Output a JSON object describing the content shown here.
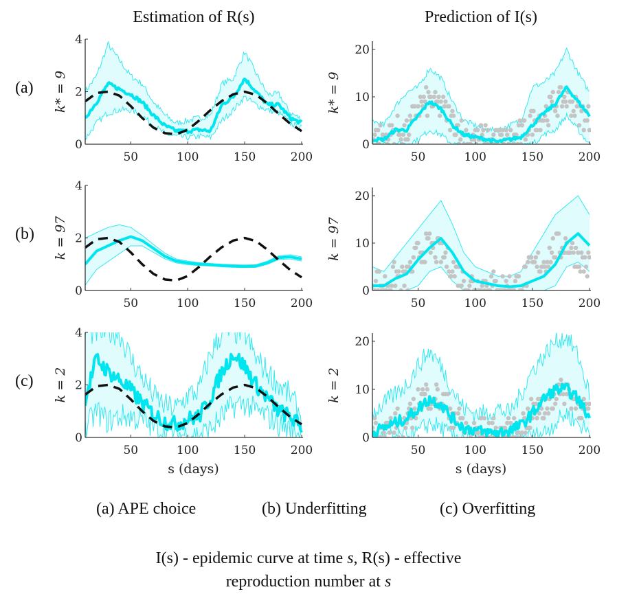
{
  "figure": {
    "col_titles": [
      "Estimation of R(s)",
      "Prediction of I(s)"
    ],
    "row_labels": [
      "(a)",
      "(b)",
      "(c)"
    ],
    "subcaptions": [
      "(a) APE choice",
      "(b) Underfitting",
      "(c) Overfitting"
    ],
    "caption_line1_a": "I(s) - epidemic curve at time ",
    "caption_line1_s": "s",
    "caption_line1_b": ", R(s) - effective",
    "caption_line2_a": "reproduction number at ",
    "caption_line2_s": "s",
    "colors": {
      "estimate": "#00e5ee",
      "band_fill": "#e0fcfd",
      "band_edge": "#33e8f0",
      "truth": "#111111",
      "observed": "#c4c4c4",
      "axis": "#333333"
    }
  },
  "chart_data": [
    {
      "id": "R-a",
      "type": "line",
      "panel": "Estimation of R(s)",
      "row": "(a)",
      "ylabel": "k* = 9",
      "xlabel": "",
      "xlim": [
        10,
        200
      ],
      "ylim": [
        0,
        4
      ],
      "xticks": [
        50,
        100,
        150,
        200
      ],
      "yticks": [
        0,
        2,
        4
      ],
      "x": [
        10,
        20,
        30,
        40,
        50,
        60,
        70,
        80,
        90,
        100,
        110,
        120,
        130,
        140,
        150,
        160,
        170,
        180,
        190,
        200
      ],
      "series": [
        {
          "name": "estimate",
          "values": [
            1.0,
            1.6,
            2.3,
            2.1,
            1.9,
            1.6,
            1.1,
            0.7,
            0.5,
            0.5,
            0.55,
            0.5,
            1.5,
            1.8,
            2.5,
            2.0,
            1.5,
            1.5,
            1.0,
            0.8
          ]
        },
        {
          "name": "upper",
          "values": [
            2.0,
            2.6,
            3.8,
            3.2,
            2.6,
            2.3,
            1.6,
            1.1,
            0.8,
            0.9,
            1.0,
            1.1,
            2.3,
            2.5,
            3.5,
            2.7,
            1.9,
            1.9,
            1.2,
            0.95
          ]
        },
        {
          "name": "lower",
          "values": [
            0.2,
            0.8,
            1.2,
            1.3,
            1.3,
            1.1,
            0.7,
            0.4,
            0.3,
            0.25,
            0.3,
            0.25,
            0.9,
            1.3,
            1.8,
            1.5,
            1.3,
            1.2,
            0.8,
            0.6
          ]
        },
        {
          "name": "truth",
          "values": [
            1.63,
            1.95,
            2.0,
            1.85,
            1.45,
            1.0,
            0.63,
            0.42,
            0.38,
            0.55,
            0.9,
            1.3,
            1.65,
            1.9,
            2.0,
            1.88,
            1.55,
            1.15,
            0.78,
            0.5
          ]
        }
      ]
    },
    {
      "id": "I-a",
      "type": "line",
      "panel": "Prediction of I(s)",
      "row": "(a)",
      "ylabel": "k* = 9",
      "xlabel": "",
      "xlim": [
        10,
        200
      ],
      "ylim": [
        0,
        22
      ],
      "xticks": [
        50,
        100,
        150,
        200
      ],
      "yticks": [
        0,
        10,
        20
      ],
      "x": [
        10,
        20,
        30,
        40,
        50,
        60,
        70,
        80,
        90,
        100,
        110,
        120,
        130,
        140,
        150,
        160,
        170,
        180,
        190,
        200
      ],
      "series": [
        {
          "name": "estimate",
          "values": [
            1,
            1,
            3,
            3,
            6,
            9,
            7.5,
            4,
            2,
            1.5,
            1,
            0.5,
            1,
            1.5,
            4,
            6.5,
            8.5,
            12,
            9,
            6
          ]
        },
        {
          "name": "upper",
          "values": [
            5,
            4,
            8,
            11,
            12,
            16,
            14,
            9,
            5,
            4,
            3,
            3,
            4,
            5,
            12,
            13,
            15,
            20,
            15,
            11
          ]
        },
        {
          "name": "lower",
          "values": [
            0,
            0,
            0,
            0,
            1,
            3,
            2,
            0,
            0,
            0,
            0,
            0,
            0,
            0,
            0,
            2,
            3,
            6,
            3,
            0
          ]
        },
        {
          "name": "observed",
          "values": [
            2,
            1,
            3,
            2,
            8,
            9,
            8,
            5,
            2,
            1,
            1,
            1,
            1,
            2,
            5,
            6,
            9,
            10,
            7,
            5
          ]
        }
      ]
    },
    {
      "id": "R-b",
      "type": "line",
      "panel": "Estimation of R(s)",
      "row": "(b)",
      "ylabel": "k = 97",
      "xlabel": "",
      "xlim": [
        10,
        200
      ],
      "ylim": [
        0,
        4
      ],
      "xticks": [
        50,
        100,
        150,
        200
      ],
      "yticks": [
        0,
        2,
        4
      ],
      "x": [
        10,
        20,
        30,
        40,
        50,
        60,
        70,
        80,
        90,
        100,
        110,
        120,
        130,
        140,
        150,
        160,
        170,
        180,
        190,
        200
      ],
      "series": [
        {
          "name": "estimate",
          "values": [
            1.0,
            1.5,
            1.7,
            1.9,
            2.05,
            1.9,
            1.6,
            1.3,
            1.12,
            1.05,
            1.0,
            0.98,
            0.95,
            0.93,
            0.92,
            0.93,
            1.05,
            1.25,
            1.28,
            1.2
          ]
        },
        {
          "name": "upper",
          "values": [
            2.0,
            2.2,
            2.4,
            2.5,
            2.4,
            2.1,
            1.75,
            1.42,
            1.2,
            1.12,
            1.06,
            1.03,
            1.0,
            0.98,
            0.97,
            0.98,
            1.12,
            1.32,
            1.36,
            1.28
          ]
        },
        {
          "name": "lower",
          "values": [
            0.2,
            0.8,
            1.1,
            1.4,
            1.7,
            1.7,
            1.45,
            1.2,
            1.05,
            0.98,
            0.95,
            0.93,
            0.9,
            0.88,
            0.87,
            0.88,
            1.0,
            1.18,
            1.2,
            1.12
          ]
        },
        {
          "name": "truth",
          "values": [
            1.63,
            1.95,
            2.0,
            1.85,
            1.45,
            1.0,
            0.63,
            0.42,
            0.38,
            0.55,
            0.9,
            1.3,
            1.65,
            1.9,
            2.0,
            1.88,
            1.55,
            1.15,
            0.78,
            0.5
          ]
        }
      ]
    },
    {
      "id": "I-b",
      "type": "line",
      "panel": "Prediction of I(s)",
      "row": "(b)",
      "ylabel": "k = 97",
      "xlabel": "",
      "xlim": [
        10,
        200
      ],
      "ylim": [
        0,
        22
      ],
      "xticks": [
        50,
        100,
        150,
        200
      ],
      "yticks": [
        0,
        10,
        20
      ],
      "x": [
        10,
        20,
        30,
        40,
        50,
        60,
        70,
        80,
        90,
        100,
        110,
        120,
        130,
        140,
        150,
        160,
        170,
        180,
        190,
        200
      ],
      "series": [
        {
          "name": "estimate",
          "values": [
            1,
            1,
            2.5,
            3.5,
            6.5,
            9,
            11,
            8,
            4,
            2,
            1.5,
            1,
            0.8,
            1,
            2,
            3,
            5.5,
            10,
            12,
            9.5
          ]
        },
        {
          "name": "upper",
          "values": [
            5,
            4,
            7,
            10,
            13,
            16,
            19,
            14,
            8,
            5,
            4,
            3,
            3,
            4,
            8,
            12,
            16,
            18,
            20,
            16
          ]
        },
        {
          "name": "lower",
          "values": [
            0,
            0,
            0,
            0,
            1,
            4,
            5,
            2,
            0,
            0,
            0,
            0,
            0,
            0,
            0,
            0,
            1,
            5,
            6,
            4
          ]
        },
        {
          "name": "observed",
          "values": [
            2,
            1,
            3,
            2,
            8,
            9,
            8,
            5,
            2,
            1,
            1,
            1,
            1,
            2,
            5,
            6,
            9,
            10,
            7,
            5
          ]
        }
      ]
    },
    {
      "id": "R-c",
      "type": "line",
      "panel": "Estimation of R(s)",
      "row": "(c)",
      "ylabel": "k = 2",
      "xlabel": "s (days)",
      "xlim": [
        10,
        200
      ],
      "ylim": [
        0,
        4
      ],
      "xticks": [
        50,
        100,
        150,
        200
      ],
      "yticks": [
        0,
        2,
        4
      ],
      "x": [
        10,
        20,
        30,
        40,
        50,
        60,
        70,
        80,
        90,
        100,
        110,
        120,
        130,
        140,
        150,
        160,
        170,
        180,
        190,
        200
      ],
      "series": [
        {
          "name": "estimate",
          "values": [
            1.5,
            3.0,
            2.5,
            2.2,
            1.8,
            1.3,
            0.9,
            0.6,
            0.5,
            0.7,
            0.8,
            1.5,
            2.5,
            3.2,
            2.7,
            2.0,
            1.5,
            1.0,
            0.8,
            0.4
          ]
        },
        {
          "name": "upper",
          "values": [
            4.0,
            4.0,
            4.0,
            4.0,
            3.0,
            2.3,
            1.6,
            1.2,
            1.1,
            1.6,
            1.8,
            3.2,
            4.0,
            4.0,
            4.0,
            3.0,
            2.5,
            2.0,
            1.6,
            0.8
          ]
        },
        {
          "name": "lower",
          "values": [
            0.3,
            1.0,
            0.6,
            0.8,
            0.8,
            0.6,
            0.4,
            0.2,
            0.1,
            0.1,
            0.1,
            0.3,
            0.8,
            1.2,
            1.3,
            1.0,
            0.8,
            0.5,
            0.3,
            0.1
          ]
        },
        {
          "name": "truth",
          "values": [
            1.63,
            1.95,
            2.0,
            1.85,
            1.45,
            1.0,
            0.63,
            0.42,
            0.38,
            0.55,
            0.9,
            1.3,
            1.65,
            1.9,
            2.0,
            1.88,
            1.55,
            1.15,
            0.78,
            0.5
          ]
        }
      ]
    },
    {
      "id": "I-c",
      "type": "line",
      "panel": "Prediction of I(s)",
      "row": "(c)",
      "ylabel": "k = 2",
      "xlabel": "s (days)",
      "xlim": [
        10,
        200
      ],
      "ylim": [
        0,
        22
      ],
      "xticks": [
        50,
        100,
        150,
        200
      ],
      "yticks": [
        0,
        10,
        20
      ],
      "x": [
        10,
        20,
        30,
        40,
        50,
        60,
        70,
        80,
        90,
        100,
        110,
        120,
        130,
        140,
        150,
        160,
        170,
        180,
        190,
        200
      ],
      "series": [
        {
          "name": "estimate",
          "values": [
            1,
            2,
            3,
            4,
            6,
            8,
            7,
            4,
            2,
            1.5,
            1,
            1,
            1.5,
            2.5,
            5,
            8,
            10,
            10,
            8,
            4
          ]
        },
        {
          "name": "upper",
          "values": [
            5,
            7,
            9,
            11,
            15,
            18,
            15,
            10,
            6,
            5,
            5,
            6,
            5,
            9,
            14,
            17,
            20,
            21,
            17,
            9
          ]
        },
        {
          "name": "lower",
          "values": [
            0,
            0,
            0,
            0,
            1,
            3,
            2,
            0,
            0,
            0,
            0,
            0,
            0,
            0,
            0,
            1,
            3,
            5,
            3,
            1
          ]
        },
        {
          "name": "observed",
          "values": [
            2,
            1,
            3,
            2,
            8,
            9,
            8,
            5,
            2,
            1,
            1,
            1,
            1,
            2,
            5,
            6,
            9,
            10,
            7,
            5
          ]
        }
      ]
    }
  ]
}
